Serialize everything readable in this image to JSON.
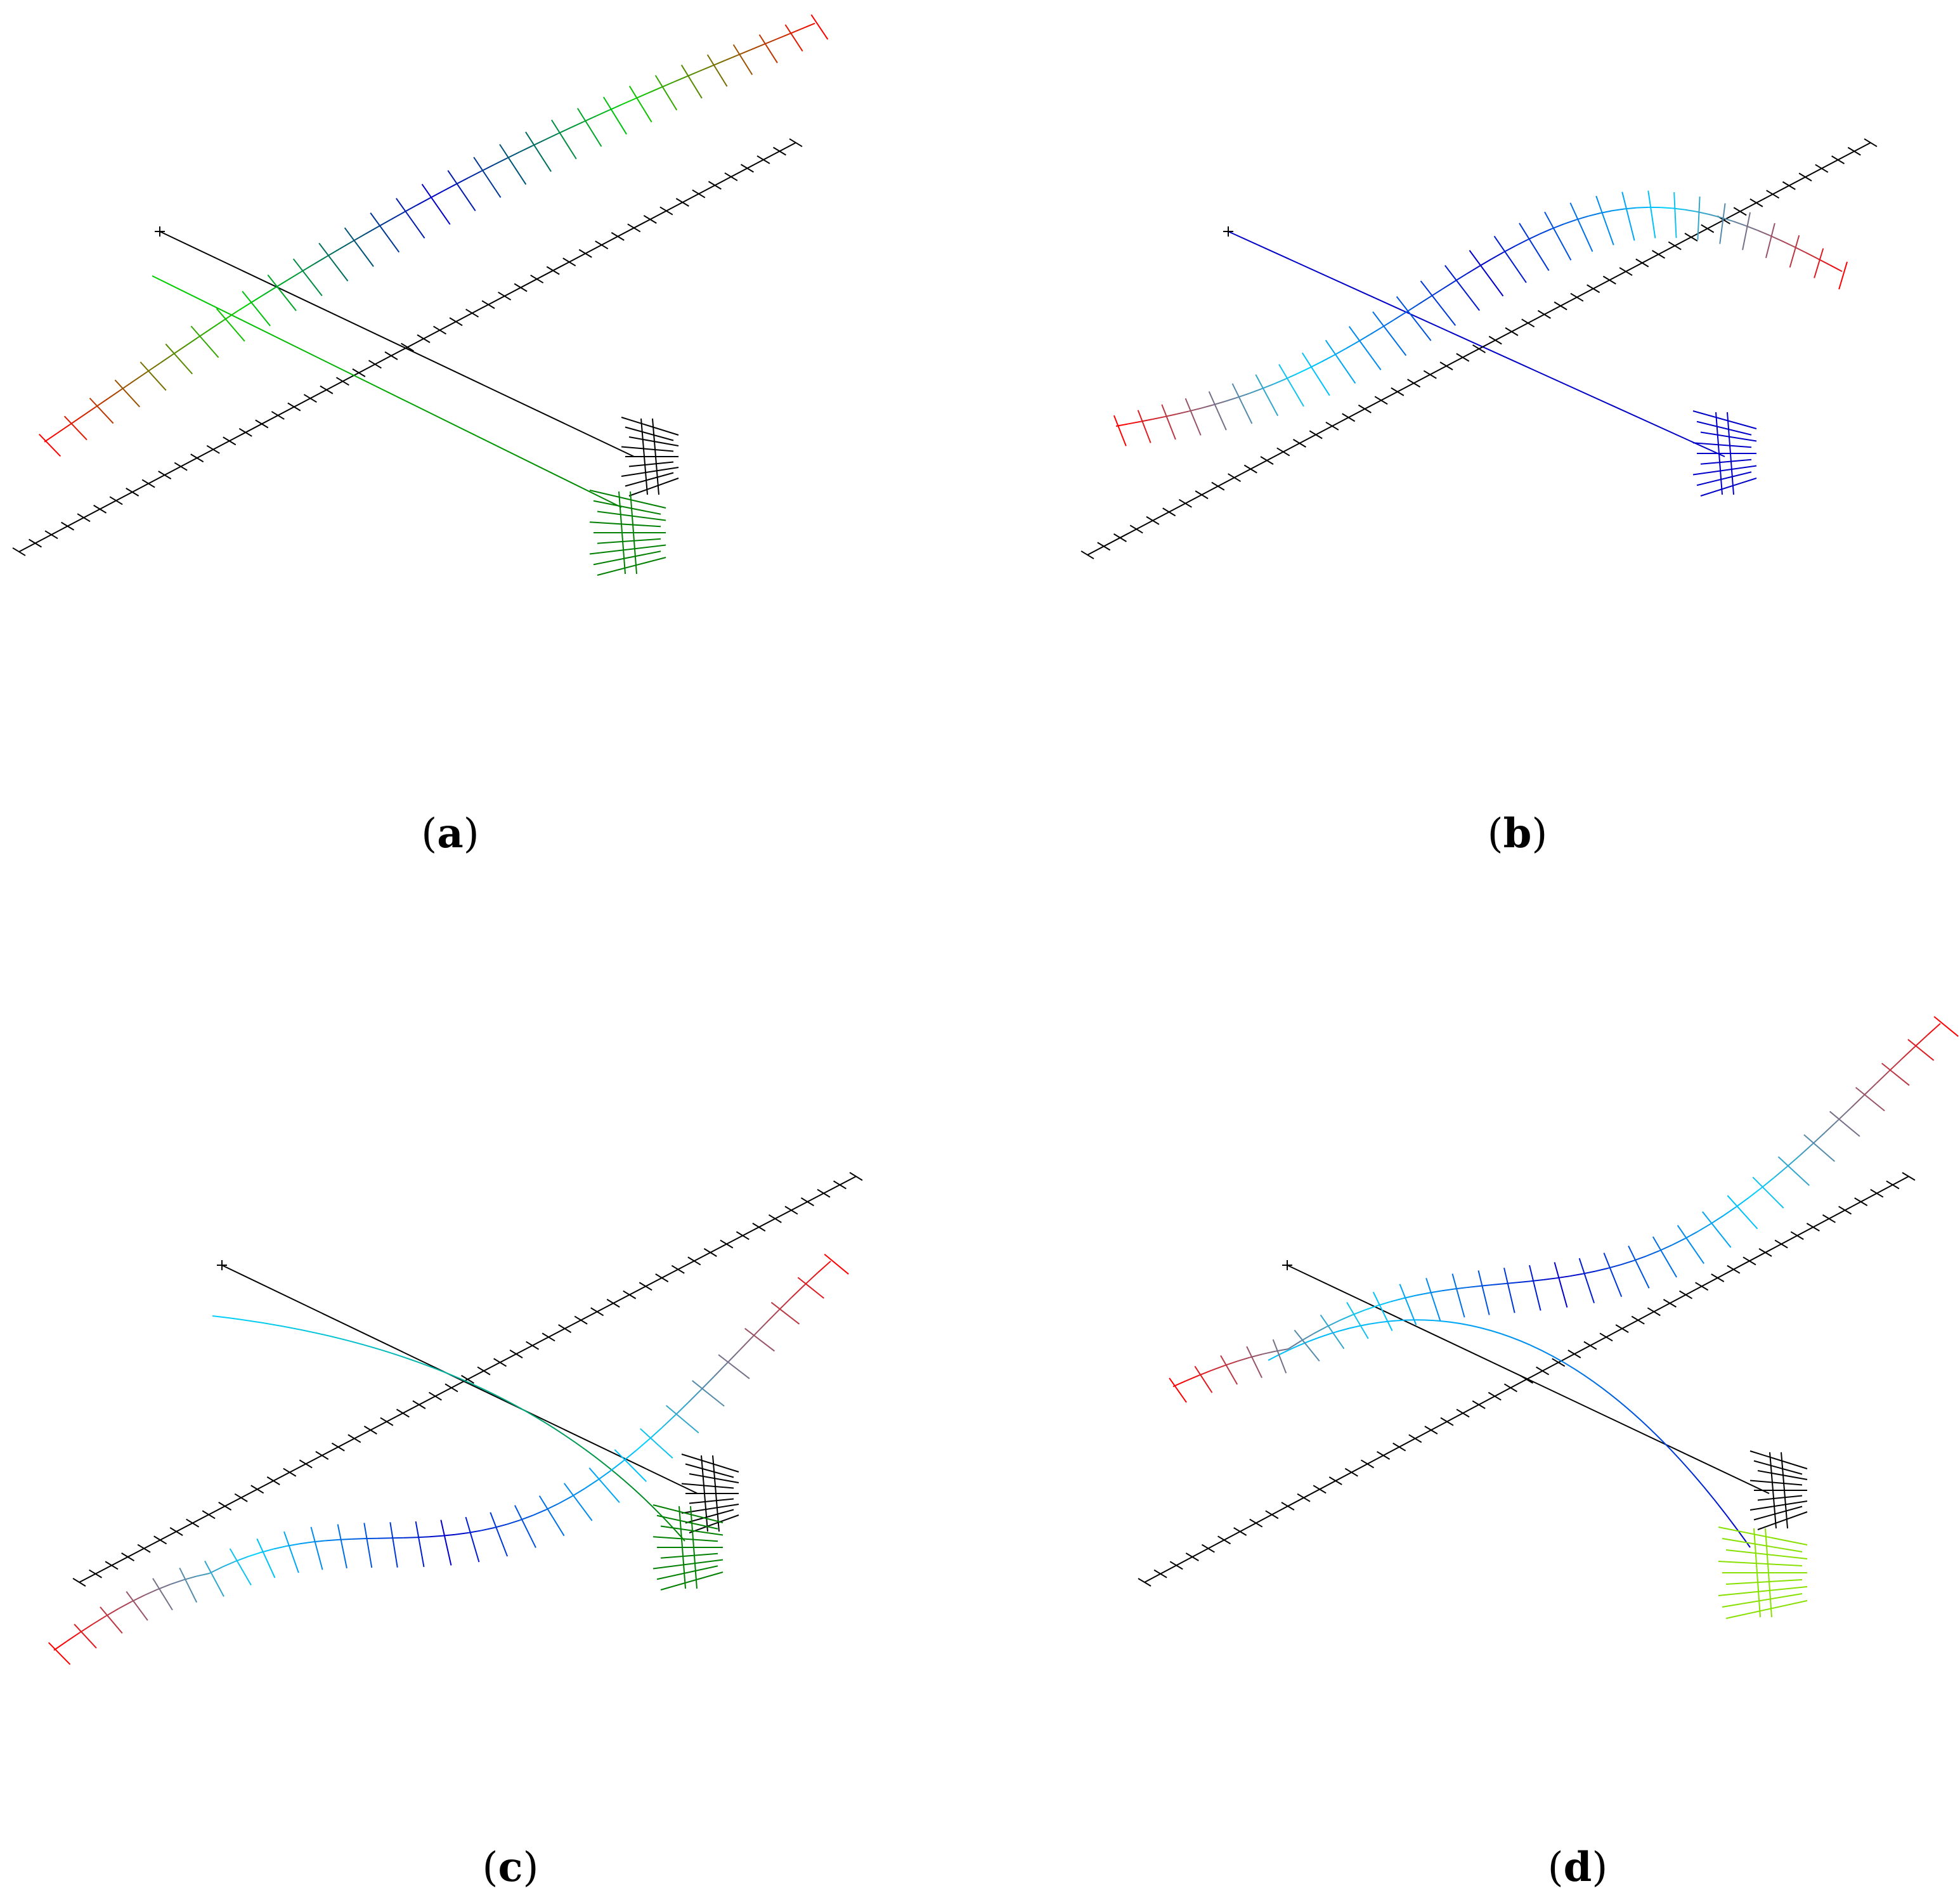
{
  "panels": [
    {
      "id": "a",
      "label": "a",
      "colors": {
        "reference": "#000000",
        "tip": "#ff0000",
        "mid": "#00d000",
        "root": "#0000c8",
        "tail": "#008000"
      }
    },
    {
      "id": "b",
      "label": "b",
      "colors": {
        "reference": "#000000",
        "tip": "#ff0000",
        "mid": "#00d0ff",
        "root": "#0000c8",
        "tail": "#0000c8"
      }
    },
    {
      "id": "c",
      "label": "c",
      "colors": {
        "reference": "#000000",
        "tip": "#ff0000",
        "mid": "#00d0ff",
        "root": "#0000c8",
        "tail": "#008000"
      }
    },
    {
      "id": "d",
      "label": "d",
      "colors": {
        "reference": "#000000",
        "tip": "#ff0000",
        "mid": "#00d0ff",
        "root": "#0000c8",
        "tail": "#88e000"
      }
    }
  ]
}
